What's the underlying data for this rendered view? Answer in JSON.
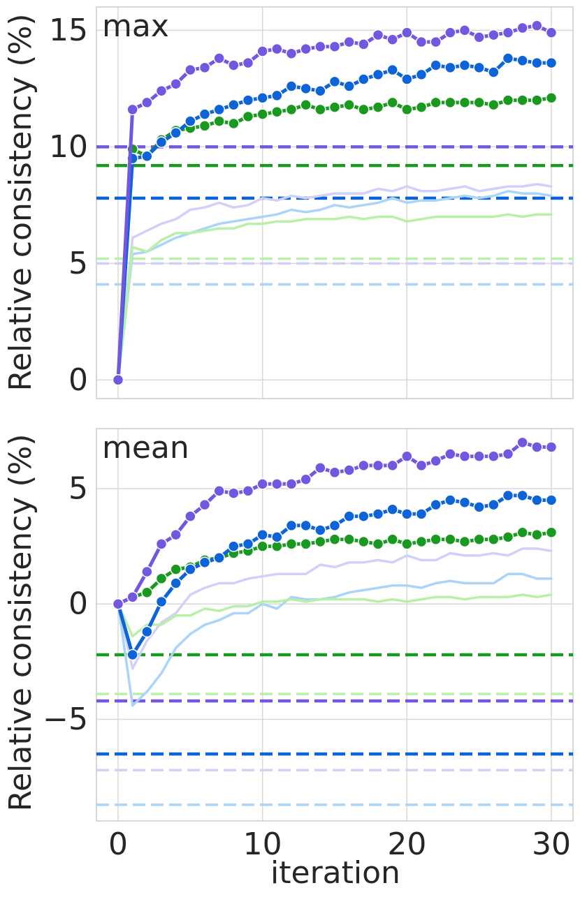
{
  "chart_data": [
    {
      "type": "line",
      "title": "max",
      "xlabel": "",
      "ylabel": "Relative consistency (%)",
      "xlim": [
        -1.5,
        31.5
      ],
      "ylim": [
        -0.8,
        16.0
      ],
      "xticks": [
        0,
        10,
        20,
        30
      ],
      "xtick_labels": [
        "0",
        "10",
        "20",
        "30"
      ],
      "yticks": [
        0,
        5,
        10,
        15
      ],
      "ytick_labels": [
        "0",
        "5",
        "10",
        "15"
      ],
      "grid": true,
      "series": [
        {
          "key": "purple-light",
          "color": "#d0d0fa",
          "style": "thin",
          "values": [
            0,
            6.1,
            6.4,
            6.7,
            6.9,
            7.3,
            7.4,
            7.6,
            7.4,
            7.5,
            7.8,
            7.7,
            7.9,
            7.8,
            7.9,
            8.0,
            8.0,
            8.0,
            8.2,
            8.1,
            8.3,
            8.1,
            8.1,
            8.2,
            8.3,
            8.1,
            8.2,
            8.3,
            8.3,
            8.4,
            8.3
          ]
        },
        {
          "key": "blue-light",
          "color": "#aad4f8",
          "style": "thin",
          "values": [
            0,
            5.4,
            5.5,
            5.8,
            6.1,
            6.3,
            6.5,
            6.7,
            6.8,
            6.9,
            7.0,
            7.1,
            7.3,
            7.2,
            7.3,
            7.5,
            7.4,
            7.5,
            7.6,
            7.8,
            7.6,
            7.7,
            7.7,
            7.8,
            7.9,
            7.8,
            7.9,
            8.1,
            8.0,
            8.0,
            7.9
          ]
        },
        {
          "key": "green-light",
          "color": "#b8f0a8",
          "style": "thin",
          "values": [
            0,
            5.7,
            5.5,
            6.0,
            6.3,
            6.3,
            6.4,
            6.5,
            6.5,
            6.7,
            6.7,
            6.8,
            6.8,
            6.9,
            6.9,
            6.9,
            7.0,
            6.9,
            7.0,
            7.0,
            6.8,
            6.9,
            7.0,
            7.0,
            7.0,
            7.0,
            7.0,
            7.1,
            7.0,
            7.1,
            7.1
          ]
        },
        {
          "key": "green",
          "color": "#1a9920",
          "style": "thick",
          "values": [
            0,
            9.9,
            9.6,
            10.3,
            10.7,
            10.8,
            10.9,
            11.1,
            11.0,
            11.3,
            11.4,
            11.5,
            11.6,
            11.8,
            11.6,
            11.7,
            11.8,
            11.6,
            11.7,
            11.9,
            11.6,
            11.7,
            11.9,
            11.9,
            11.9,
            11.9,
            11.8,
            12.0,
            12.0,
            12.0,
            12.1
          ]
        },
        {
          "key": "blue",
          "color": "#0d63d8",
          "style": "thick",
          "values": [
            0,
            9.5,
            9.6,
            10.2,
            10.6,
            11.1,
            11.4,
            11.6,
            11.8,
            12.0,
            12.1,
            12.2,
            12.6,
            12.5,
            12.4,
            12.8,
            12.6,
            12.9,
            13.1,
            13.3,
            12.9,
            13.1,
            13.5,
            13.4,
            13.5,
            13.4,
            13.2,
            13.8,
            13.7,
            13.6,
            13.6
          ]
        },
        {
          "key": "purple",
          "color": "#7357e0",
          "style": "thick",
          "values": [
            0,
            11.6,
            11.9,
            12.4,
            12.7,
            13.3,
            13.4,
            13.8,
            13.5,
            13.6,
            14.1,
            14.2,
            14.0,
            14.2,
            14.3,
            14.3,
            14.5,
            14.4,
            14.8,
            14.6,
            14.9,
            14.5,
            14.5,
            14.9,
            15.0,
            14.7,
            14.8,
            14.9,
            15.1,
            15.2,
            14.9
          ]
        }
      ],
      "hlines": [
        {
          "key": "purple",
          "color": "#7357e0",
          "style": "thick",
          "y": 10.0
        },
        {
          "key": "green",
          "color": "#1a9920",
          "style": "thick",
          "y": 9.2
        },
        {
          "key": "blue",
          "color": "#0d63d8",
          "style": "thick",
          "y": 7.8
        },
        {
          "key": "green-light",
          "color": "#b8f0a8",
          "style": "thin",
          "y": 5.2
        },
        {
          "key": "purple-light",
          "color": "#d0d0fa",
          "style": "thin",
          "y": 5.0
        },
        {
          "key": "blue-light",
          "color": "#aad4f8",
          "style": "thin",
          "y": 4.1
        }
      ]
    },
    {
      "type": "line",
      "title": "mean",
      "xlabel": "iteration",
      "ylabel": "Relative consistency (%)",
      "xlim": [
        -1.5,
        31.5
      ],
      "ylim": [
        -9.4,
        7.6
      ],
      "xticks": [
        0,
        10,
        20,
        30
      ],
      "xtick_labels": [
        "0",
        "10",
        "20",
        "30"
      ],
      "yticks": [
        -5,
        0,
        5
      ],
      "ytick_labels": [
        "−5",
        "0",
        "5"
      ],
      "grid": true,
      "series": [
        {
          "key": "purple-light",
          "color": "#d0d0fa",
          "style": "thin",
          "values": [
            0,
            -2.8,
            -1.6,
            -0.8,
            -0.4,
            0.4,
            0.7,
            0.9,
            0.9,
            1.1,
            1.2,
            1.3,
            1.3,
            1.3,
            1.7,
            1.6,
            1.8,
            1.8,
            1.9,
            1.8,
            2.1,
            1.9,
            1.9,
            2.2,
            2.1,
            2.1,
            2.2,
            2.1,
            2.4,
            2.4,
            2.3
          ]
        },
        {
          "key": "blue-light",
          "color": "#aad4f8",
          "style": "thin",
          "values": [
            0,
            -4.4,
            -3.8,
            -3.0,
            -1.9,
            -1.3,
            -0.9,
            -0.7,
            -0.4,
            -0.4,
            0.0,
            -0.2,
            0.3,
            0.2,
            0.2,
            0.3,
            0.5,
            0.6,
            0.7,
            0.8,
            0.8,
            0.7,
            0.9,
            1.0,
            0.9,
            0.9,
            0.9,
            1.3,
            1.3,
            1.1,
            1.1
          ]
        },
        {
          "key": "green-light",
          "color": "#b8f0a8",
          "style": "thin",
          "values": [
            0,
            -1.4,
            -0.9,
            -0.9,
            -0.5,
            -0.5,
            -0.2,
            -0.3,
            -0.1,
            -0.1,
            0.1,
            0.1,
            0.2,
            0.1,
            0.2,
            0.2,
            0.2,
            0.2,
            0.1,
            0.2,
            0.1,
            0.2,
            0.3,
            0.3,
            0.2,
            0.3,
            0.3,
            0.3,
            0.4,
            0.3,
            0.4
          ]
        },
        {
          "key": "green",
          "color": "#1a9920",
          "style": "thick",
          "values": [
            0,
            0.3,
            0.5,
            1.1,
            1.5,
            1.6,
            1.9,
            2.0,
            2.2,
            2.3,
            2.5,
            2.5,
            2.6,
            2.6,
            2.7,
            2.8,
            2.8,
            2.7,
            2.6,
            2.8,
            2.6,
            2.7,
            2.8,
            2.8,
            2.7,
            2.8,
            2.8,
            2.9,
            3.1,
            3.0,
            3.1
          ]
        },
        {
          "key": "blue",
          "color": "#0d63d8",
          "style": "thick",
          "values": [
            0,
            -2.2,
            -1.2,
            0.1,
            0.9,
            1.5,
            1.8,
            2.0,
            2.5,
            2.6,
            3.0,
            2.9,
            3.4,
            3.4,
            3.2,
            3.4,
            3.8,
            3.8,
            3.9,
            4.1,
            3.9,
            3.9,
            4.3,
            4.5,
            4.4,
            4.2,
            4.3,
            4.7,
            4.7,
            4.5,
            4.5
          ]
        },
        {
          "key": "purple",
          "color": "#7357e0",
          "style": "thick",
          "values": [
            0,
            0.3,
            1.4,
            2.6,
            3.0,
            3.8,
            4.3,
            4.9,
            4.8,
            4.9,
            5.2,
            5.2,
            5.2,
            5.4,
            5.9,
            5.7,
            5.8,
            6.0,
            6.0,
            6.0,
            6.4,
            6.0,
            6.2,
            6.5,
            6.4,
            6.4,
            6.4,
            6.5,
            7.0,
            6.8,
            6.8
          ]
        }
      ],
      "hlines": [
        {
          "key": "green",
          "color": "#1a9920",
          "style": "thick",
          "y": -2.2
        },
        {
          "key": "green-light",
          "color": "#b8f0a8",
          "style": "thin",
          "y": -3.9
        },
        {
          "key": "purple",
          "color": "#7357e0",
          "style": "thick",
          "y": -4.2
        },
        {
          "key": "blue",
          "color": "#0d63d8",
          "style": "thick",
          "y": -6.5
        },
        {
          "key": "purple-light",
          "color": "#d0d0fa",
          "style": "thin",
          "y": -7.2
        },
        {
          "key": "blue-light",
          "color": "#aad4f8",
          "style": "thin",
          "y": -8.7
        }
      ]
    }
  ]
}
